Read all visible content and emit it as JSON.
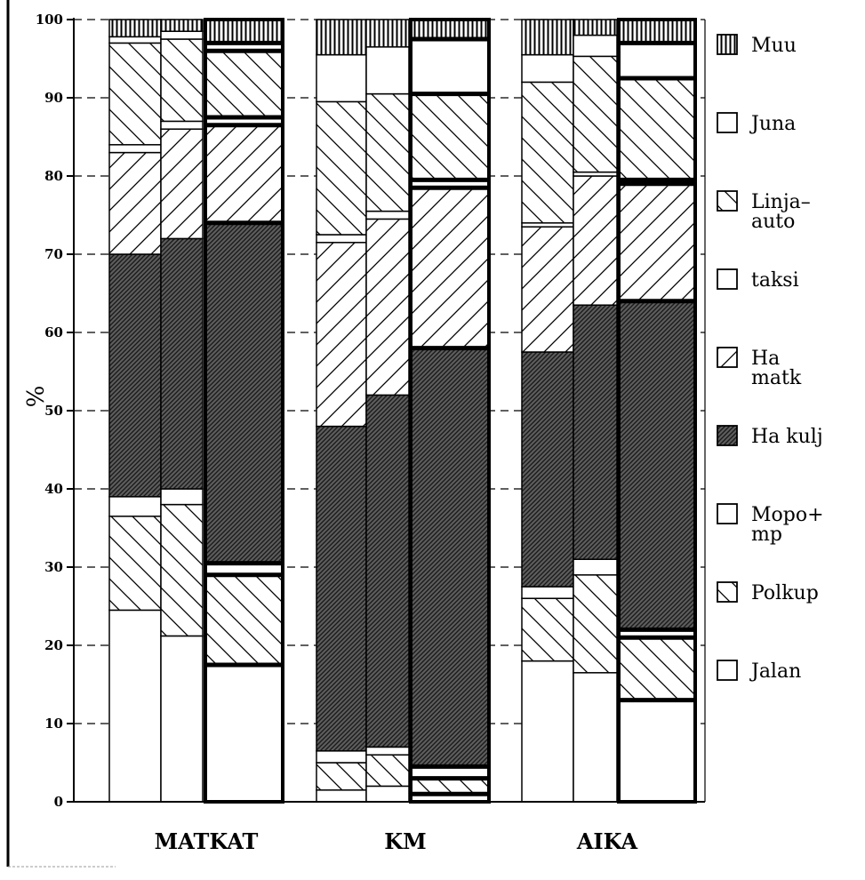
{
  "chart_data": {
    "type": "bar",
    "stacked": true,
    "ylabel": "%",
    "ylim": [
      0,
      100
    ],
    "yticks": [
      "0",
      "10",
      "20",
      "30",
      "40",
      "50",
      "60",
      "70",
      "80",
      "90",
      "100"
    ],
    "grid": "dashed horizontal",
    "legend_position": "right",
    "groups": [
      "MATKAT",
      "KM",
      "AIKA"
    ],
    "bar_counts": [
      3,
      3,
      3
    ],
    "legend": [
      {
        "key": "muu",
        "label": "Muu",
        "pattern": "vertical"
      },
      {
        "key": "juna",
        "label": "Juna",
        "pattern": "none"
      },
      {
        "key": "linja",
        "label": "Linja–\nauto",
        "pattern": "backslash"
      },
      {
        "key": "taksi",
        "label": "taksi",
        "pattern": "none"
      },
      {
        "key": "hamatk",
        "label": "Ha\nmatk",
        "pattern": "slash"
      },
      {
        "key": "hakulj",
        "label": "Ha kulj",
        "pattern": "dense"
      },
      {
        "key": "mopo",
        "label": "Mopo+\nmp",
        "pattern": "none"
      },
      {
        "key": "polkup",
        "label": "Polkup",
        "pattern": "backslash"
      },
      {
        "key": "jalan",
        "label": "Jalan",
        "pattern": "none"
      }
    ],
    "series_order": [
      "jalan",
      "polkup",
      "mopo",
      "hakulj",
      "hamatk",
      "taksi",
      "linja",
      "juna",
      "muu"
    ],
    "bars": [
      {
        "group": "MATKAT",
        "values": {
          "jalan": 24.5,
          "polkup": 12,
          "mopo": 2.5,
          "hakulj": 31,
          "hamatk": 13,
          "taksi": 1,
          "linja": 13,
          "juna": 0.8,
          "muu": 2.2
        }
      },
      {
        "group": "MATKAT",
        "values": {
          "jalan": 21.2,
          "polkup": 16.8,
          "mopo": 2,
          "hakulj": 32,
          "hamatk": 14,
          "taksi": 1,
          "linja": 10.5,
          "juna": 1,
          "muu": 1.5
        }
      },
      {
        "group": "MATKAT",
        "values": {
          "jalan": 17.5,
          "polkup": 11.5,
          "mopo": 1.5,
          "hakulj": 43.5,
          "hamatk": 12.5,
          "taksi": 1,
          "linja": 8.5,
          "juna": 1,
          "muu": 3
        }
      },
      {
        "group": "KM",
        "values": {
          "jalan": 1.5,
          "polkup": 3.5,
          "mopo": 1.5,
          "hakulj": 41.5,
          "hamatk": 23.5,
          "taksi": 1,
          "linja": 17,
          "juna": 6,
          "muu": 4.5
        }
      },
      {
        "group": "KM",
        "values": {
          "jalan": 2,
          "polkup": 4,
          "mopo": 1,
          "hakulj": 45,
          "hamatk": 22.5,
          "taksi": 1,
          "linja": 15,
          "juna": 6,
          "muu": 3.5
        }
      },
      {
        "group": "KM",
        "values": {
          "jalan": 1,
          "polkup": 2,
          "mopo": 1.5,
          "hakulj": 53.5,
          "hamatk": 20.5,
          "taksi": 1,
          "linja": 11,
          "juna": 7,
          "muu": 2.5
        }
      },
      {
        "group": "AIKA",
        "values": {
          "jalan": 18,
          "polkup": 8,
          "mopo": 1.5,
          "hakulj": 30,
          "hamatk": 16,
          "taksi": 0.5,
          "linja": 18,
          "juna": 3.5,
          "muu": 4.5
        }
      },
      {
        "group": "AIKA",
        "values": {
          "jalan": 16.5,
          "polkup": 12.5,
          "mopo": 2,
          "hakulj": 32.5,
          "hamatk": 16.5,
          "taksi": 0.5,
          "linja": 14.8,
          "juna": 2.7,
          "muu": 2
        }
      },
      {
        "group": "AIKA",
        "values": {
          "jalan": 13,
          "polkup": 8,
          "mopo": 1,
          "hakulj": 42,
          "hamatk": 15,
          "taksi": 0.5,
          "linja": 13,
          "juna": 4.5,
          "muu": 3
        }
      }
    ]
  }
}
